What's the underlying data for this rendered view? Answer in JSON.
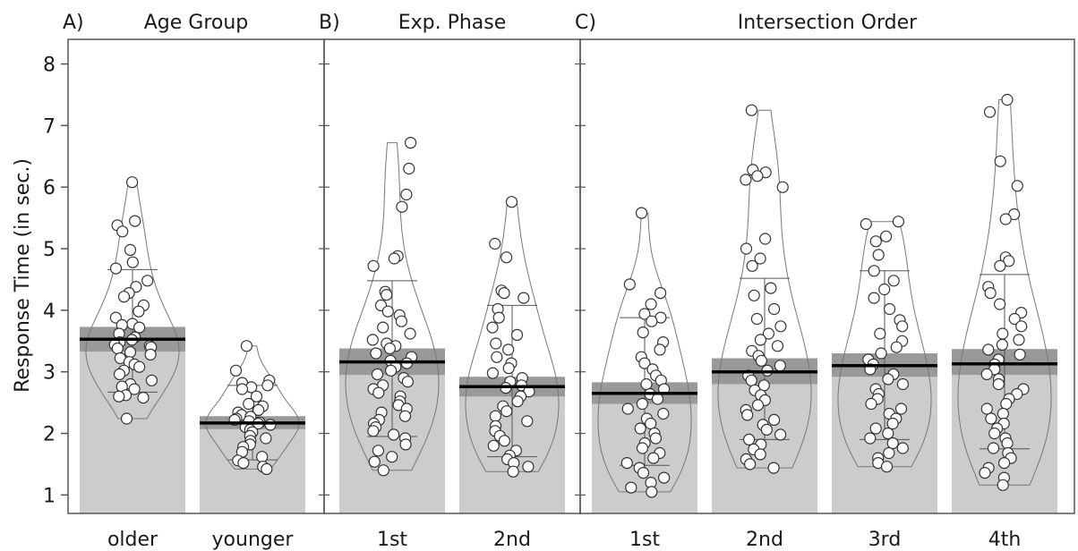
{
  "chart_data": {
    "type": "bar",
    "ylabel": "Response Time (in sec.)",
    "ylim": [
      0.7,
      8.4
    ],
    "yticks": [
      1,
      2,
      3,
      4,
      5,
      6,
      7,
      8
    ],
    "colors": {
      "bar": "#cccccc",
      "ci_band": "#999999",
      "mean_line": "#000000",
      "point_fill": "#ffffff",
      "point_stroke": "#333333",
      "violin": "#777777",
      "frame": "#555555"
    },
    "panels": [
      {
        "tag": "A)",
        "title": "Age Group",
        "groups": [
          {
            "label": "older",
            "mean": 3.53,
            "ci": [
              3.33,
              3.73
            ],
            "sd": [
              2.67,
              4.66
            ],
            "points": [
              6.08,
              5.45,
              5.38,
              5.28,
              4.98,
              4.78,
              4.68,
              4.48,
              4.38,
              4.28,
              4.22,
              4.08,
              3.98,
              3.88,
              3.78,
              3.76,
              3.72,
              3.62,
              3.56,
              3.52,
              3.48,
              3.44,
              3.42,
              3.4,
              3.38,
              3.32,
              3.28,
              3.22,
              3.16,
              3.12,
              3.08,
              3.02,
              2.96,
              2.86,
              2.8,
              2.76,
              2.72,
              2.62,
              2.6,
              2.58,
              2.24
            ]
          },
          {
            "label": "younger",
            "mean": 2.17,
            "ci": [
              2.07,
              2.28
            ],
            "sd": [
              1.57,
              2.78
            ],
            "points": [
              3.42,
              3.02,
              2.86,
              2.82,
              2.78,
              2.75,
              2.72,
              2.6,
              2.48,
              2.44,
              2.38,
              2.34,
              2.3,
              2.27,
              2.24,
              2.22,
              2.2,
              2.18,
              2.16,
              2.14,
              2.1,
              2.06,
              2.02,
              1.96,
              1.92,
              1.88,
              1.82,
              1.78,
              1.7,
              1.62,
              1.56,
              1.52,
              1.46,
              1.42
            ]
          }
        ]
      },
      {
        "tag": "B)",
        "title": "Exp. Phase",
        "groups": [
          {
            "label": "1st",
            "mean": 3.16,
            "ci": [
              2.95,
              3.38
            ],
            "sd": [
              1.95,
              4.48
            ],
            "points": [
              6.72,
              6.3,
              5.88,
              5.68,
              4.88,
              4.84,
              4.72,
              4.3,
              4.25,
              4.08,
              3.98,
              3.92,
              3.82,
              3.72,
              3.62,
              3.52,
              3.46,
              3.42,
              3.38,
              3.3,
              3.24,
              3.18,
              3.14,
              3.08,
              3.02,
              2.96,
              2.9,
              2.84,
              2.78,
              2.72,
              2.66,
              2.6,
              2.52,
              2.46,
              2.4,
              2.34,
              2.28,
              2.22,
              2.16,
              2.1,
              2.04,
              1.98,
              1.92,
              1.82,
              1.72,
              1.62,
              1.54,
              1.4
            ]
          },
          {
            "label": "2nd",
            "mean": 2.76,
            "ci": [
              2.6,
              2.92
            ],
            "sd": [
              1.62,
              4.08
            ],
            "points": [
              5.76,
              5.08,
              4.86,
              4.32,
              4.28,
              4.2,
              4.02,
              3.88,
              3.72,
              3.6,
              3.46,
              3.36,
              3.24,
              3.14,
              3.06,
              2.98,
              2.9,
              2.84,
              2.78,
              2.74,
              2.68,
              2.6,
              2.52,
              2.44,
              2.36,
              2.28,
              2.2,
              2.12,
              2.04,
              1.96,
              1.88,
              1.8,
              1.72,
              1.64,
              1.58,
              1.52,
              1.46,
              1.38
            ]
          }
        ]
      },
      {
        "tag": "C)",
        "title": "Intersection Order",
        "groups": [
          {
            "label": "1st",
            "mean": 2.65,
            "ci": [
              2.48,
              2.83
            ],
            "sd": [
              1.48,
              3.88
            ],
            "points": [
              5.58,
              4.42,
              4.28,
              4.1,
              3.94,
              3.88,
              3.82,
              3.64,
              3.48,
              3.36,
              3.24,
              3.14,
              3.04,
              2.94,
              2.86,
              2.8,
              2.72,
              2.64,
              2.56,
              2.48,
              2.4,
              2.32,
              2.24,
              2.16,
              2.08,
              2.0,
              1.92,
              1.84,
              1.76,
              1.68,
              1.6,
              1.52,
              1.44,
              1.36,
              1.28,
              1.2,
              1.12,
              1.05
            ]
          },
          {
            "label": "2nd",
            "mean": 3.0,
            "ci": [
              2.8,
              3.22
            ],
            "sd": [
              1.9,
              4.52
            ],
            "points": [
              7.25,
              6.28,
              6.24,
              6.18,
              6.12,
              6.0,
              5.16,
              5.0,
              4.84,
              4.72,
              4.36,
              4.24,
              4.02,
              3.86,
              3.74,
              3.62,
              3.52,
              3.42,
              3.34,
              3.26,
              3.18,
              3.1,
              3.02,
              2.94,
              2.86,
              2.78,
              2.7,
              2.62,
              2.54,
              2.46,
              2.38,
              2.3,
              2.22,
              2.14,
              2.06,
              1.98,
              1.9,
              1.82,
              1.74,
              1.66,
              1.58,
              1.5,
              1.44
            ]
          },
          {
            "label": "3rd",
            "mean": 3.1,
            "ci": [
              2.92,
              3.3
            ],
            "sd": [
              1.9,
              4.64
            ],
            "points": [
              5.44,
              5.4,
              5.2,
              5.12,
              4.9,
              4.64,
              4.48,
              4.34,
              4.2,
              4.02,
              3.84,
              3.74,
              3.62,
              3.5,
              3.4,
              3.3,
              3.2,
              3.12,
              3.04,
              2.96,
              2.88,
              2.8,
              2.72,
              2.64,
              2.56,
              2.48,
              2.4,
              2.32,
              2.24,
              2.16,
              2.08,
              2.0,
              1.92,
              1.84,
              1.76,
              1.68,
              1.6,
              1.52,
              1.46
            ]
          },
          {
            "label": "4th",
            "mean": 3.13,
            "ci": [
              2.95,
              3.37
            ],
            "sd": [
              1.75,
              4.58
            ],
            "points": [
              7.42,
              7.22,
              6.42,
              6.02,
              5.56,
              5.48,
              4.86,
              4.8,
              4.72,
              4.38,
              4.28,
              4.1,
              3.96,
              3.86,
              3.74,
              3.62,
              3.52,
              3.44,
              3.36,
              3.28,
              3.2,
              3.12,
              3.04,
              2.96,
              2.88,
              2.8,
              2.72,
              2.64,
              2.56,
              2.48,
              2.4,
              2.32,
              2.24,
              2.16,
              2.08,
              2.0,
              1.92,
              1.84,
              1.76,
              1.68,
              1.6,
              1.52,
              1.44,
              1.36,
              1.28,
              1.16
            ]
          }
        ]
      }
    ]
  }
}
